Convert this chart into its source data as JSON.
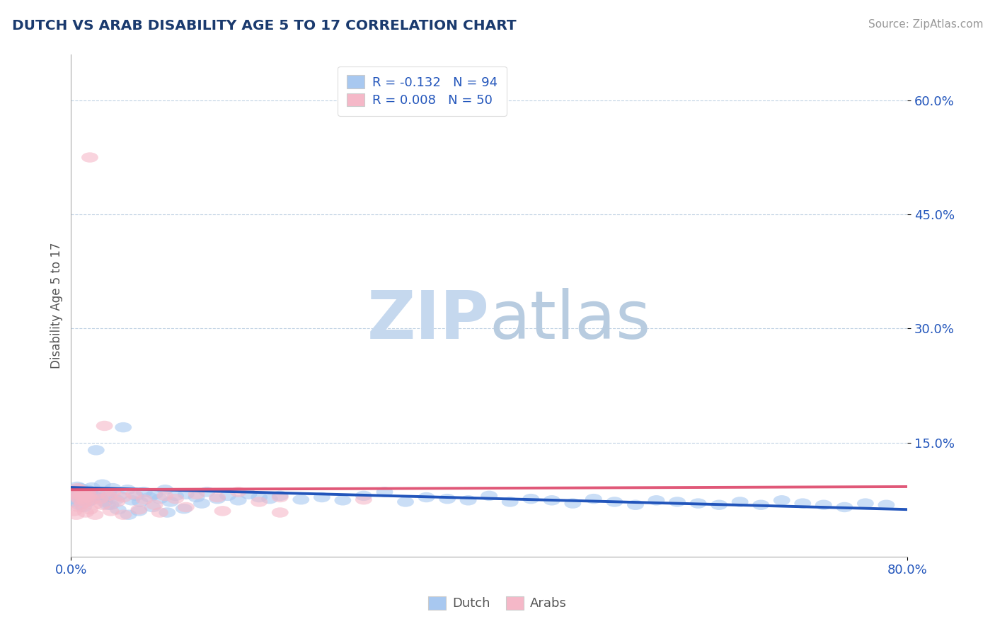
{
  "title": "DUTCH VS ARAB DISABILITY AGE 5 TO 17 CORRELATION CHART",
  "source": "Source: ZipAtlas.com",
  "ylabel": "Disability Age 5 to 17",
  "xlim": [
    0.0,
    0.8
  ],
  "ylim": [
    0.0,
    0.66
  ],
  "yticks": [
    0.15,
    0.3,
    0.45,
    0.6
  ],
  "ytick_labels": [
    "15.0%",
    "30.0%",
    "45.0%",
    "60.0%"
  ],
  "xticks": [
    0.0,
    0.8
  ],
  "xtick_labels": [
    "0.0%",
    "80.0%"
  ],
  "title_color": "#1a3a6e",
  "title_fontsize": 14.5,
  "background_color": "#ffffff",
  "dutch_color": "#a8c8f0",
  "arab_color": "#f5b8c8",
  "dutch_line_color": "#2255bb",
  "arab_line_color": "#e05878",
  "dutch_R": -0.132,
  "dutch_N": 94,
  "arab_R": 0.008,
  "arab_N": 50,
  "legend_text_color": "#2255bb",
  "watermark_zip_color": "#c5d8ee",
  "watermark_atlas_color": "#b8cce0",
  "dutch_trend_y0": 0.091,
  "dutch_trend_y1": 0.062,
  "arab_trend_y0": 0.088,
  "arab_trend_y1": 0.092,
  "dutch_x": [
    0.002,
    0.004,
    0.006,
    0.007,
    0.008,
    0.009,
    0.01,
    0.011,
    0.012,
    0.013,
    0.014,
    0.015,
    0.016,
    0.017,
    0.018,
    0.019,
    0.02,
    0.022,
    0.024,
    0.026,
    0.028,
    0.03,
    0.032,
    0.034,
    0.036,
    0.038,
    0.04,
    0.043,
    0.046,
    0.05,
    0.054,
    0.058,
    0.062,
    0.066,
    0.07,
    0.075,
    0.08,
    0.085,
    0.09,
    0.095,
    0.1,
    0.11,
    0.12,
    0.13,
    0.14,
    0.15,
    0.16,
    0.17,
    0.18,
    0.19,
    0.2,
    0.22,
    0.24,
    0.26,
    0.28,
    0.3,
    0.32,
    0.34,
    0.36,
    0.38,
    0.4,
    0.42,
    0.44,
    0.46,
    0.48,
    0.5,
    0.52,
    0.54,
    0.56,
    0.58,
    0.6,
    0.62,
    0.64,
    0.66,
    0.68,
    0.7,
    0.72,
    0.74,
    0.76,
    0.78,
    0.003,
    0.005,
    0.008,
    0.012,
    0.016,
    0.025,
    0.035,
    0.045,
    0.055,
    0.065,
    0.078,
    0.092,
    0.108,
    0.125
  ],
  "dutch_y": [
    0.088,
    0.085,
    0.092,
    0.08,
    0.078,
    0.09,
    0.086,
    0.082,
    0.079,
    0.084,
    0.076,
    0.088,
    0.083,
    0.077,
    0.085,
    0.074,
    0.091,
    0.08,
    0.14,
    0.082,
    0.076,
    0.095,
    0.072,
    0.078,
    0.085,
    0.068,
    0.09,
    0.075,
    0.08,
    0.17,
    0.088,
    0.074,
    0.08,
    0.072,
    0.085,
    0.078,
    0.082,
    0.076,
    0.088,
    0.072,
    0.08,
    0.082,
    0.078,
    0.085,
    0.076,
    0.08,
    0.074,
    0.082,
    0.078,
    0.076,
    0.08,
    0.075,
    0.078,
    0.074,
    0.08,
    0.085,
    0.072,
    0.078,
    0.076,
    0.074,
    0.08,
    0.072,
    0.076,
    0.074,
    0.07,
    0.076,
    0.072,
    0.068,
    0.074,
    0.072,
    0.07,
    0.068,
    0.072,
    0.068,
    0.074,
    0.07,
    0.068,
    0.065,
    0.07,
    0.068,
    0.072,
    0.075,
    0.068,
    0.065,
    0.072,
    0.078,
    0.068,
    0.062,
    0.055,
    0.06,
    0.065,
    0.058,
    0.063,
    0.07
  ],
  "arab_x": [
    0.002,
    0.004,
    0.006,
    0.007,
    0.008,
    0.009,
    0.01,
    0.011,
    0.012,
    0.013,
    0.014,
    0.015,
    0.016,
    0.017,
    0.018,
    0.02,
    0.022,
    0.025,
    0.028,
    0.032,
    0.036,
    0.04,
    0.044,
    0.05,
    0.06,
    0.07,
    0.08,
    0.09,
    0.1,
    0.12,
    0.14,
    0.16,
    0.18,
    0.2,
    0.003,
    0.005,
    0.008,
    0.011,
    0.014,
    0.018,
    0.023,
    0.03,
    0.038,
    0.05,
    0.065,
    0.085,
    0.11,
    0.145,
    0.2,
    0.28
  ],
  "arab_y": [
    0.085,
    0.082,
    0.09,
    0.078,
    0.075,
    0.088,
    0.08,
    0.084,
    0.076,
    0.082,
    0.072,
    0.078,
    0.085,
    0.08,
    0.525,
    0.075,
    0.068,
    0.082,
    0.076,
    0.172,
    0.08,
    0.085,
    0.072,
    0.078,
    0.082,
    0.075,
    0.068,
    0.08,
    0.076,
    0.082,
    0.078,
    0.085,
    0.072,
    0.078,
    0.06,
    0.055,
    0.065,
    0.07,
    0.058,
    0.062,
    0.055,
    0.068,
    0.06,
    0.055,
    0.062,
    0.058,
    0.065,
    0.06,
    0.058,
    0.075
  ]
}
